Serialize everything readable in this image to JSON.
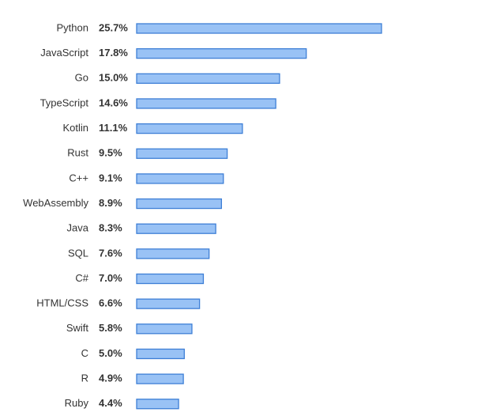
{
  "chart_data": {
    "type": "bar",
    "orientation": "horizontal",
    "title": "",
    "xlabel": "",
    "ylabel": "",
    "categories": [
      "Python",
      "JavaScript",
      "Go",
      "TypeScript",
      "Kotlin",
      "Rust",
      "C++",
      "WebAssembly",
      "Java",
      "SQL",
      "C#",
      "HTML/CSS",
      "Swift",
      "C",
      "R",
      "Ruby"
    ],
    "values": [
      25.7,
      17.8,
      15.0,
      14.6,
      11.1,
      9.5,
      9.1,
      8.9,
      8.3,
      7.6,
      7.0,
      6.6,
      5.8,
      5.0,
      4.9,
      4.4
    ],
    "value_labels": [
      "25.7%",
      "17.8%",
      "15.0%",
      "14.6%",
      "11.1%",
      "9.5%",
      "9.1%",
      "8.9%",
      "8.3%",
      "7.6%",
      "7.0%",
      "6.6%",
      "5.8%",
      "5.0%",
      "4.9%",
      "4.4%"
    ],
    "unit": "%",
    "xlim": [
      0,
      25.7
    ],
    "grid": false,
    "legend": "none",
    "colors": {
      "bar_fill": "#99c2f5",
      "bar_stroke": "#3e7fd6",
      "text": "#333333"
    }
  }
}
